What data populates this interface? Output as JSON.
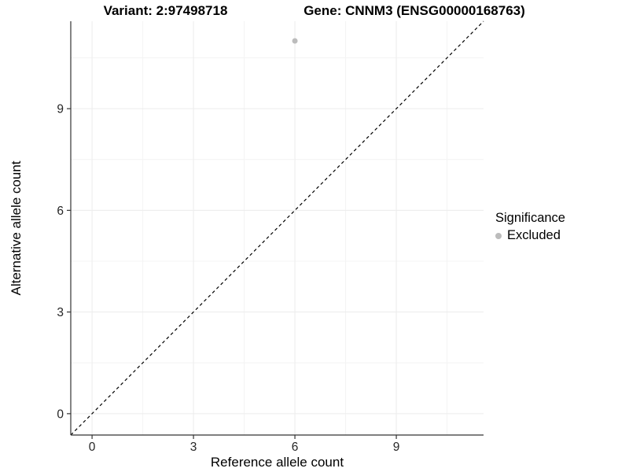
{
  "header": {
    "variant_title": "Variant: 2:97498718",
    "gene_title": "Gene: CNNM3 (ENSG00000168763)"
  },
  "axes": {
    "x_title": "Reference allele count",
    "y_title": "Alternative allele count",
    "x_tick_labels": [
      "0",
      "3",
      "6",
      "9"
    ],
    "y_tick_labels": [
      "0",
      "3",
      "6",
      "9"
    ]
  },
  "legend": {
    "title": "Significance",
    "items": [
      {
        "label": "Excluded",
        "color": "#bcbcbc",
        "marker": "dot-icon"
      }
    ]
  },
  "chart_data": {
    "type": "scatter",
    "title": "Variant: 2:97498718 / Gene: CNNM3 (ENSG00000168763)",
    "xlabel": "Reference allele count",
    "ylabel": "Alternative allele count",
    "xlim": [
      -0.63,
      11.58
    ],
    "ylim": [
      -0.63,
      11.58
    ],
    "x_ticks": [
      0,
      3,
      6,
      9
    ],
    "y_ticks": [
      0,
      3,
      6,
      9
    ],
    "x_minor_ticks": [
      1.5,
      4.5,
      7.5,
      10.5
    ],
    "y_minor_ticks": [
      1.5,
      4.5,
      7.5,
      10.5
    ],
    "grid": "major+minor",
    "legend_position": "right",
    "series": [
      {
        "name": "Excluded",
        "color": "#bcbcbc",
        "points": [
          {
            "x": 6,
            "y": 11
          }
        ]
      }
    ],
    "reference_line": {
      "type": "identity",
      "slope": 1,
      "intercept": 0,
      "style": "dashed",
      "color": "#000000"
    },
    "colors": {
      "background": "#ffffff",
      "grid_major": "#ececec",
      "grid_minor": "#f4f4f4",
      "axis_line": "#333333",
      "tick_text": "#262626"
    }
  }
}
